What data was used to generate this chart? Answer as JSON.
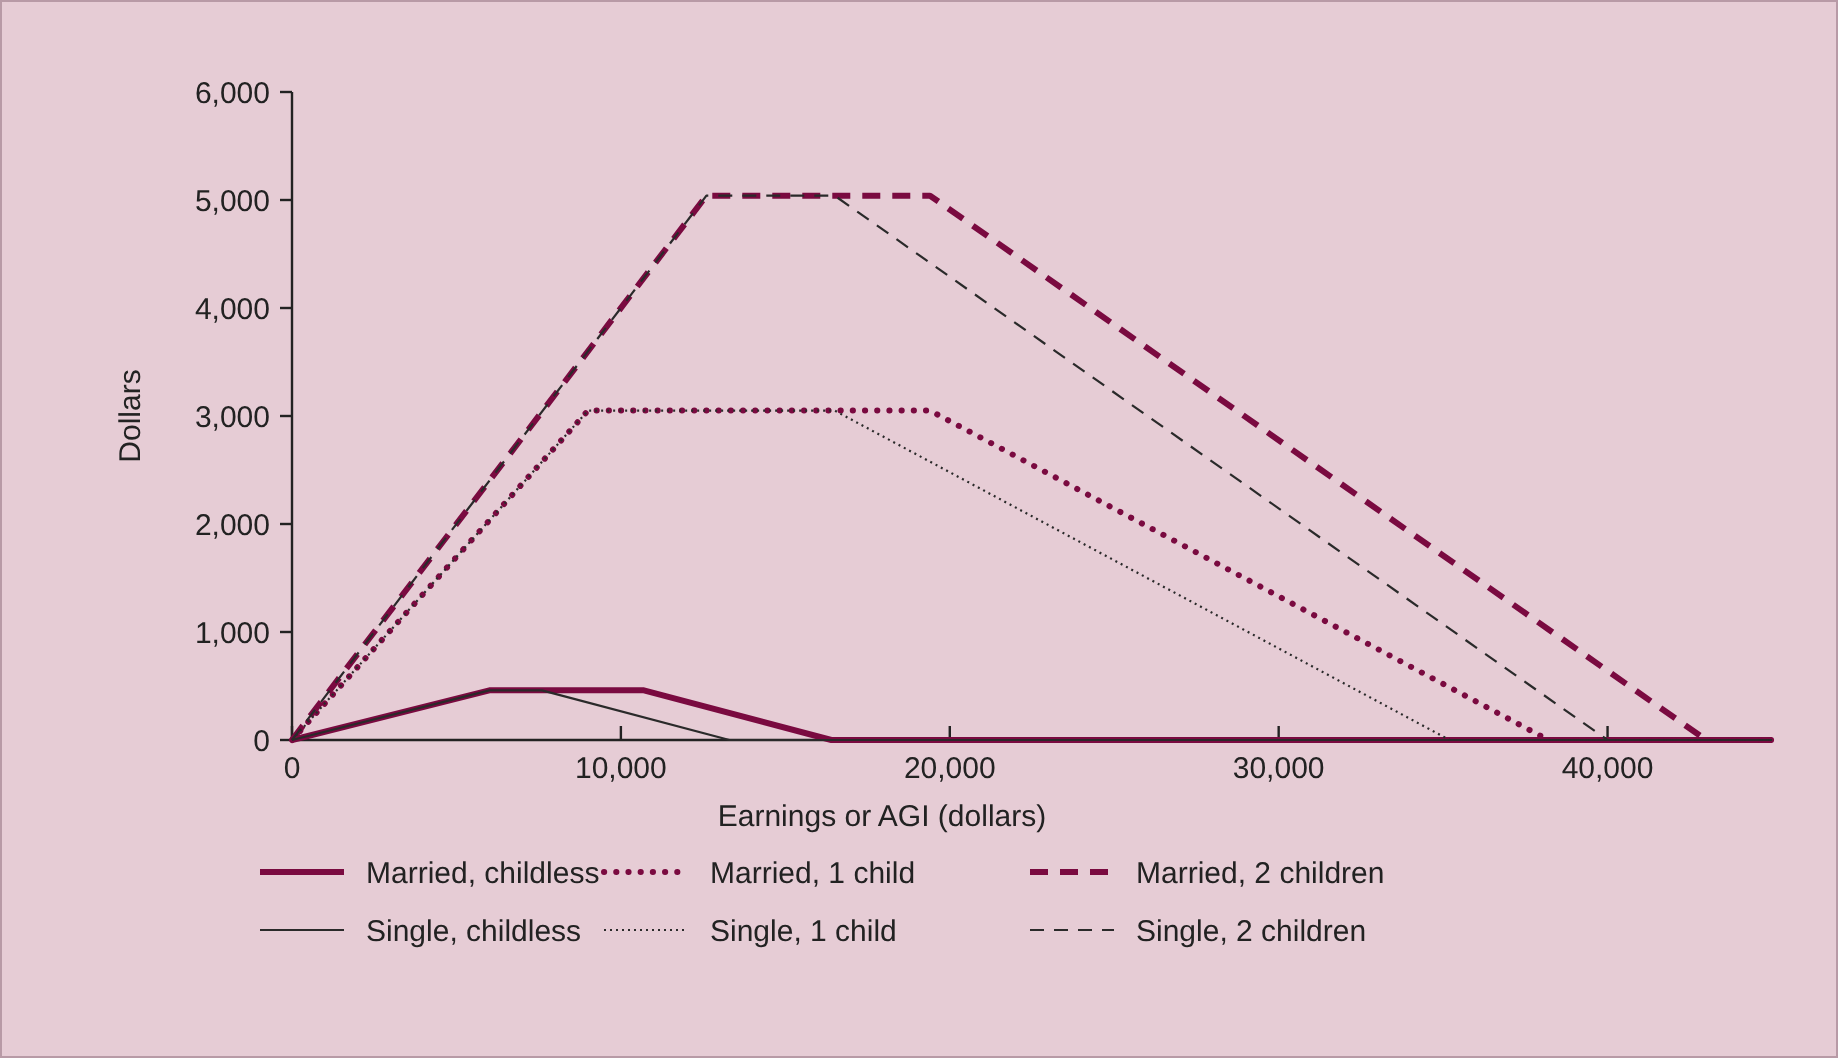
{
  "chart_data": {
    "type": "line",
    "xlabel": "Earnings or AGI (dollars)",
    "ylabel": "Dollars",
    "xlim": [
      0,
      45000
    ],
    "ylim": [
      0,
      6000
    ],
    "xticks": [
      0,
      {
        "value": 10000,
        "label": "10,000"
      },
      {
        "value": 20000,
        "label": "20,000"
      },
      {
        "value": 30000,
        "label": "30,000"
      },
      {
        "value": 40000,
        "label": "40,000"
      }
    ],
    "yticks": [
      0,
      {
        "value": 1000,
        "label": "1,000"
      },
      {
        "value": 2000,
        "label": "2,000"
      },
      {
        "value": 3000,
        "label": "3,000"
      },
      {
        "value": 4000,
        "label": "4,000"
      },
      {
        "value": 5000,
        "label": "5,000"
      },
      {
        "value": 6000,
        "label": "6,000"
      }
    ],
    "grid": false,
    "legend": "bottom",
    "marker": "none",
    "series": [
      {
        "name": "Married, childless",
        "color": "#7a0a40",
        "line_style": "solid",
        "x": [
          0,
          6000,
          10700,
          16400,
          45000
        ],
        "values": [
          0,
          460,
          460,
          0,
          0
        ]
      },
      {
        "name": "Married, 1 child",
        "color": "#7a0a40",
        "line_style": "dotted",
        "x": [
          0,
          9000,
          19400,
          38200,
          45000
        ],
        "values": [
          0,
          3050,
          3050,
          0,
          0
        ]
      },
      {
        "name": "Married, 2 children",
        "color": "#7a0a40",
        "line_style": "dashed",
        "x": [
          0,
          12600,
          19400,
          43000,
          45000
        ],
        "values": [
          0,
          5040,
          5040,
          0,
          0
        ]
      },
      {
        "name": "Single, childless",
        "color": "#2a2a2a",
        "line_style": "solid",
        "x": [
          0,
          6000,
          7600,
          13300,
          45000
        ],
        "values": [
          0,
          460,
          460,
          0,
          0
        ]
      },
      {
        "name": "Single, 1 child",
        "color": "#2a2a2a",
        "line_style": "dotted",
        "x": [
          0,
          9000,
          16500,
          35200,
          45000
        ],
        "values": [
          0,
          3050,
          3050,
          0,
          0
        ]
      },
      {
        "name": "Single, 2 children",
        "color": "#2a2a2a",
        "line_style": "dashed",
        "x": [
          0,
          12600,
          16500,
          40000,
          45000
        ],
        "values": [
          0,
          5040,
          5040,
          0,
          0
        ]
      }
    ]
  }
}
